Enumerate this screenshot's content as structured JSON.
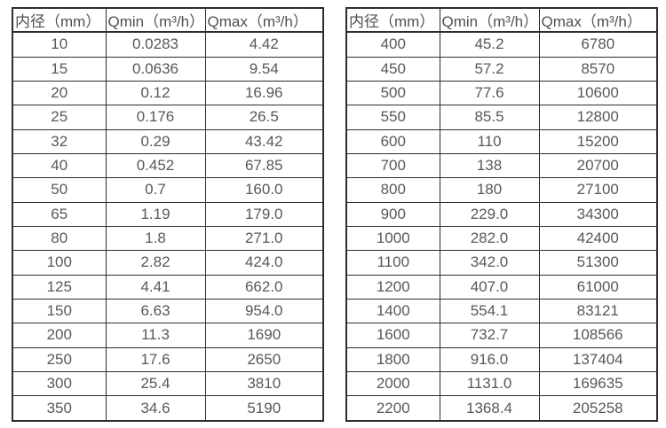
{
  "page": {
    "background": "#ffffff",
    "border_color": "#2d2d2f",
    "text_color": "#58585a"
  },
  "tables": [
    {
      "name": "spec-table-small-diameters",
      "headers": [
        "内径（mm）",
        "Qmin（m³/h）",
        "Qmax（m³/h）"
      ],
      "rows": [
        [
          "10",
          "0.0283",
          "4.42"
        ],
        [
          "15",
          "0.0636",
          "9.54"
        ],
        [
          "20",
          "0.12",
          "16.96"
        ],
        [
          "25",
          "0.176",
          "26.5"
        ],
        [
          "32",
          "0.29",
          "43.42"
        ],
        [
          "40",
          "0.452",
          "67.85"
        ],
        [
          "50",
          "0.7",
          "160.0"
        ],
        [
          "65",
          "1.19",
          "179.0"
        ],
        [
          "80",
          "1.8",
          "271.0"
        ],
        [
          "100",
          "2.82",
          "424.0"
        ],
        [
          "125",
          "4.41",
          "662.0"
        ],
        [
          "150",
          "6.63",
          "954.0"
        ],
        [
          "200",
          "11.3",
          "1690"
        ],
        [
          "250",
          "17.6",
          "2650"
        ],
        [
          "300",
          "25.4",
          "3810"
        ],
        [
          "350",
          "34.6",
          "5190"
        ]
      ]
    },
    {
      "name": "spec-table-large-diameters",
      "headers": [
        "内径（mm）",
        "Qmin（m³/h）",
        "Qmax（m³/h）"
      ],
      "rows": [
        [
          "400",
          "45.2",
          "6780"
        ],
        [
          "450",
          "57.2",
          "8570"
        ],
        [
          "500",
          "77.6",
          "10600"
        ],
        [
          "550",
          "85.5",
          "12800"
        ],
        [
          "600",
          "110",
          "15200"
        ],
        [
          "700",
          "138",
          "20700"
        ],
        [
          "800",
          "180",
          "27100"
        ],
        [
          "900",
          "229.0",
          "34300"
        ],
        [
          "1000",
          "282.0",
          "42400"
        ],
        [
          "1100",
          "342.0",
          "51300"
        ],
        [
          "1200",
          "407.0",
          "61000"
        ],
        [
          "1400",
          "554.1",
          "83121"
        ],
        [
          "1600",
          "732.7",
          "108566"
        ],
        [
          "1800",
          "916.0",
          "137404"
        ],
        [
          "2000",
          "1131.0",
          "169635"
        ],
        [
          "2200",
          "1368.4",
          "205258"
        ]
      ]
    }
  ]
}
